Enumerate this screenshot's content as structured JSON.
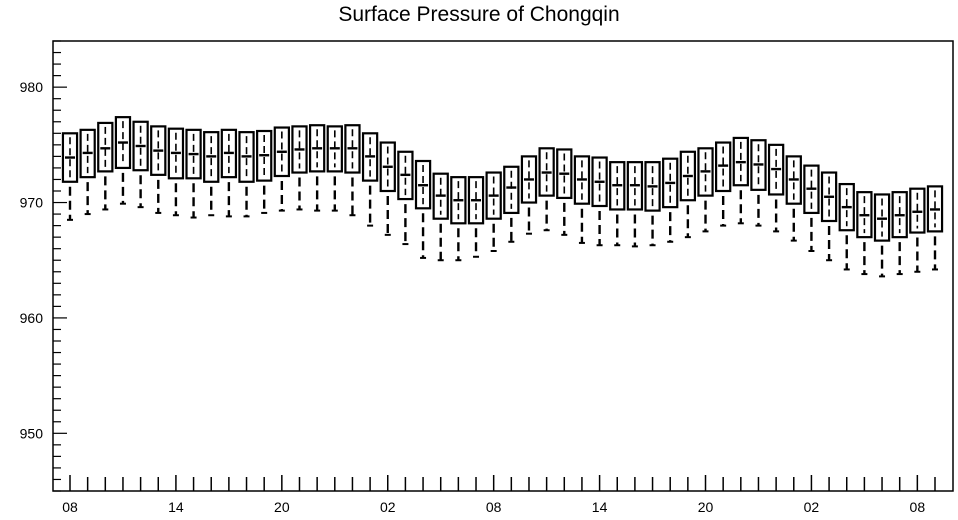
{
  "chart_data": {
    "type": "box",
    "title": "Surface Pressure of Chongqin",
    "xlabel": "",
    "ylabel": "",
    "ylim": [
      945,
      984
    ],
    "y_ticks": [
      950,
      960,
      970,
      980
    ],
    "y_tick_labels": [
      "950",
      "960",
      "970",
      "980"
    ],
    "x_tick_labels": [
      "08",
      "14",
      "20",
      "02",
      "08",
      "14",
      "20",
      "02",
      "08"
    ],
    "x_tick_label_steps": [
      0,
      6,
      12,
      18,
      24,
      30,
      36,
      42,
      48
    ],
    "grid": false,
    "legend": "none",
    "box_series": {
      "whisker_low": [
        968.5,
        969.0,
        969.4,
        969.9,
        969.6,
        969.1,
        968.9,
        968.7,
        968.9,
        968.8,
        968.8,
        969.1,
        969.3,
        969.4,
        969.3,
        969.3,
        968.9,
        968.0,
        967.2,
        966.4,
        965.2,
        965.0,
        965.0,
        965.3,
        965.8,
        966.6,
        967.3,
        967.6,
        967.2,
        966.5,
        966.3,
        966.3,
        966.2,
        966.3,
        966.6,
        967.0,
        967.5,
        968.0,
        968.2,
        968.0,
        967.5,
        966.7,
        965.8,
        965.0,
        964.2,
        963.8,
        963.6,
        963.8,
        964.0,
        964.2
      ],
      "q1": [
        971.8,
        972.2,
        972.7,
        973.0,
        972.8,
        972.4,
        972.1,
        972.1,
        971.8,
        972.2,
        971.8,
        971.9,
        972.3,
        972.6,
        972.7,
        972.7,
        972.6,
        971.9,
        971.0,
        970.3,
        969.5,
        968.6,
        968.2,
        968.2,
        968.6,
        969.1,
        970.0,
        970.6,
        970.4,
        969.9,
        969.7,
        969.4,
        969.4,
        969.3,
        969.6,
        970.2,
        970.6,
        971.0,
        971.5,
        971.1,
        970.7,
        969.9,
        969.1,
        968.4,
        967.6,
        967.0,
        966.7,
        967.0,
        967.4,
        967.5
      ],
      "median": [
        973.9,
        974.3,
        974.7,
        975.2,
        974.9,
        974.5,
        974.3,
        974.2,
        974.0,
        974.3,
        974.0,
        974.1,
        974.4,
        974.6,
        974.7,
        974.7,
        974.7,
        974.0,
        973.1,
        972.4,
        971.5,
        970.6,
        970.2,
        970.2,
        970.6,
        971.3,
        972.0,
        972.6,
        972.5,
        972.0,
        971.8,
        971.5,
        971.5,
        971.4,
        971.7,
        972.3,
        972.7,
        973.2,
        973.5,
        973.3,
        972.9,
        972.0,
        971.2,
        970.5,
        969.6,
        968.9,
        968.6,
        968.9,
        969.2,
        969.4
      ],
      "q3": [
        976.0,
        976.3,
        976.9,
        977.4,
        977.0,
        976.6,
        976.4,
        976.3,
        976.1,
        976.3,
        976.1,
        976.2,
        976.5,
        976.6,
        976.7,
        976.6,
        976.7,
        976.0,
        975.2,
        974.4,
        973.6,
        972.5,
        972.2,
        972.2,
        972.6,
        973.1,
        974.0,
        974.7,
        974.6,
        974.0,
        973.9,
        973.5,
        973.5,
        973.5,
        973.8,
        974.4,
        974.7,
        975.2,
        975.6,
        975.4,
        975.0,
        974.0,
        973.2,
        972.6,
        971.6,
        970.9,
        970.7,
        970.9,
        971.2,
        971.4
      ],
      "whisker_high": [
        976.0,
        976.3,
        976.9,
        977.4,
        977.0,
        976.6,
        976.4,
        976.3,
        976.1,
        976.3,
        976.1,
        976.2,
        976.5,
        976.6,
        976.7,
        976.6,
        976.7,
        976.0,
        975.2,
        974.4,
        973.6,
        972.5,
        972.2,
        972.2,
        972.6,
        973.1,
        974.0,
        974.7,
        974.6,
        974.0,
        973.9,
        973.5,
        973.5,
        973.5,
        973.8,
        974.4,
        974.7,
        975.2,
        975.6,
        975.4,
        975.0,
        974.0,
        973.2,
        972.6,
        971.6,
        970.9,
        970.7,
        970.9,
        971.2,
        971.4
      ]
    }
  }
}
